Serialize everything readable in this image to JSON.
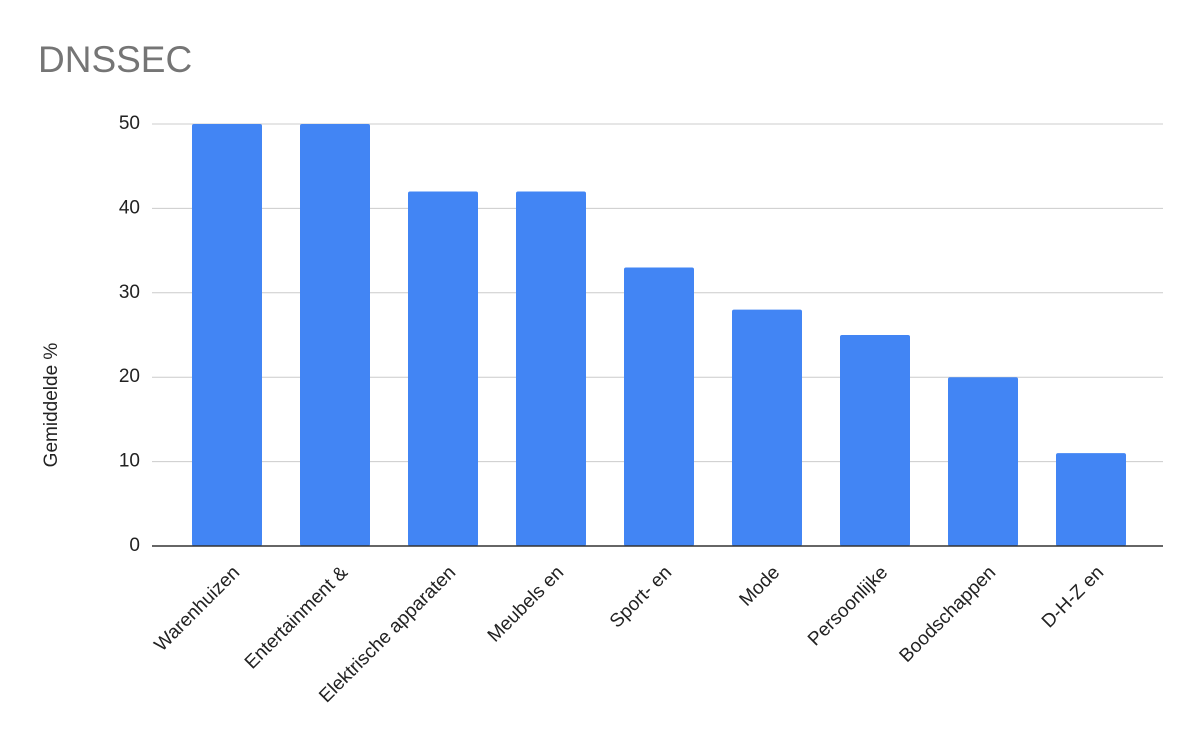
{
  "chart_data": {
    "type": "bar",
    "title": "DNSSEC",
    "y_label": "Gemiddelde %",
    "categories": [
      "Warenhuizen",
      "Entertainment &",
      "Elektrische apparaten",
      "Meubels en",
      "Sport- en",
      "Mode",
      "Persoonlijke",
      "Boodschappen",
      "D-H-Z en"
    ],
    "values": [
      50,
      50,
      42,
      42,
      33,
      28,
      25,
      20,
      11
    ],
    "color": "#4285f4",
    "ylim": [
      0,
      50
    ],
    "yticks": [
      0,
      10,
      20,
      30,
      40,
      50
    ],
    "grid": true
  }
}
